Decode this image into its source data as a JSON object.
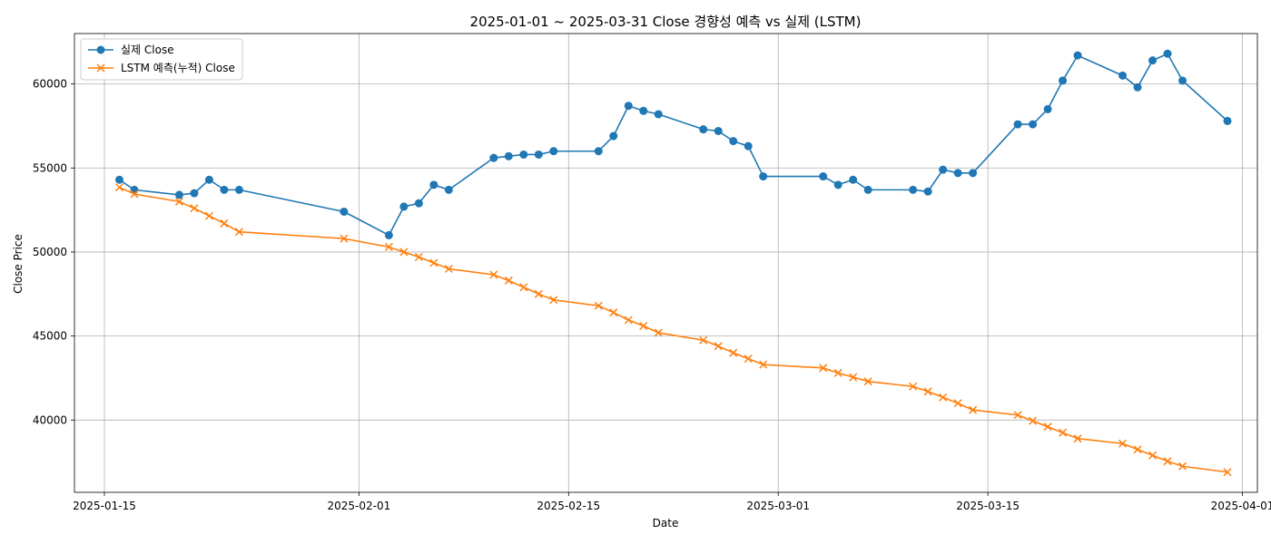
{
  "chart_data": {
    "type": "line",
    "title": "2025-01-01 ~ 2025-03-31 Close 경향성 예측 vs 실제 (LSTM)",
    "xlabel": "Date",
    "ylabel": "Close Price",
    "xlim": [
      "2025-01-13",
      "2025-04-02"
    ],
    "ylim": [
      35700,
      63000
    ],
    "x_ticks": [
      "2025-01-15",
      "2025-02-01",
      "2025-02-15",
      "2025-03-01",
      "2025-03-15",
      "2025-04-01"
    ],
    "y_ticks": [
      40000,
      45000,
      50000,
      55000,
      60000
    ],
    "grid": true,
    "legend_position": "top-left",
    "x": [
      "2025-01-16",
      "2025-01-17",
      "2025-01-20",
      "2025-01-21",
      "2025-01-22",
      "2025-01-23",
      "2025-01-24",
      "2025-01-31",
      "2025-02-03",
      "2025-02-04",
      "2025-02-05",
      "2025-02-06",
      "2025-02-07",
      "2025-02-10",
      "2025-02-11",
      "2025-02-12",
      "2025-02-13",
      "2025-02-14",
      "2025-02-17",
      "2025-02-18",
      "2025-02-19",
      "2025-02-20",
      "2025-02-21",
      "2025-02-24",
      "2025-02-25",
      "2025-02-26",
      "2025-02-27",
      "2025-02-28",
      "2025-03-04",
      "2025-03-05",
      "2025-03-06",
      "2025-03-07",
      "2025-03-10",
      "2025-03-11",
      "2025-03-12",
      "2025-03-13",
      "2025-03-14",
      "2025-03-17",
      "2025-03-18",
      "2025-03-19",
      "2025-03-20",
      "2025-03-21",
      "2025-03-24",
      "2025-03-25",
      "2025-03-26",
      "2025-03-27",
      "2025-03-28",
      "2025-03-31"
    ],
    "series": [
      {
        "name": "실제 Close",
        "color": "#1f77b4",
        "marker": "circle",
        "values": [
          54300,
          53700,
          53400,
          53500,
          54300,
          53700,
          53700,
          52400,
          51000,
          52700,
          52900,
          54000,
          53700,
          55600,
          55700,
          55800,
          55800,
          56000,
          56000,
          56900,
          58700,
          58400,
          58200,
          57300,
          57200,
          56600,
          56300,
          54500,
          54500,
          54000,
          54300,
          53700,
          53700,
          53600,
          54900,
          54700,
          54700,
          57600,
          57600,
          58500,
          60200,
          61700,
          60500,
          59800,
          61400,
          61800,
          60200,
          57800
        ]
      },
      {
        "name": "LSTM 예측(누적) Close",
        "color": "#ff7f0e",
        "marker": "x",
        "values": [
          53850,
          53450,
          53000,
          52600,
          52150,
          51700,
          51200,
          50800,
          50300,
          50000,
          49700,
          49350,
          49000,
          48650,
          48300,
          47900,
          47500,
          47150,
          46800,
          46400,
          45950,
          45600,
          45200,
          44750,
          44400,
          44000,
          43650,
          43300,
          43100,
          42800,
          42550,
          42300,
          42000,
          41700,
          41350,
          41000,
          40600,
          40300,
          39950,
          39600,
          39250,
          38900,
          38600,
          38250,
          37900,
          37550,
          37250,
          36900
        ]
      }
    ]
  }
}
